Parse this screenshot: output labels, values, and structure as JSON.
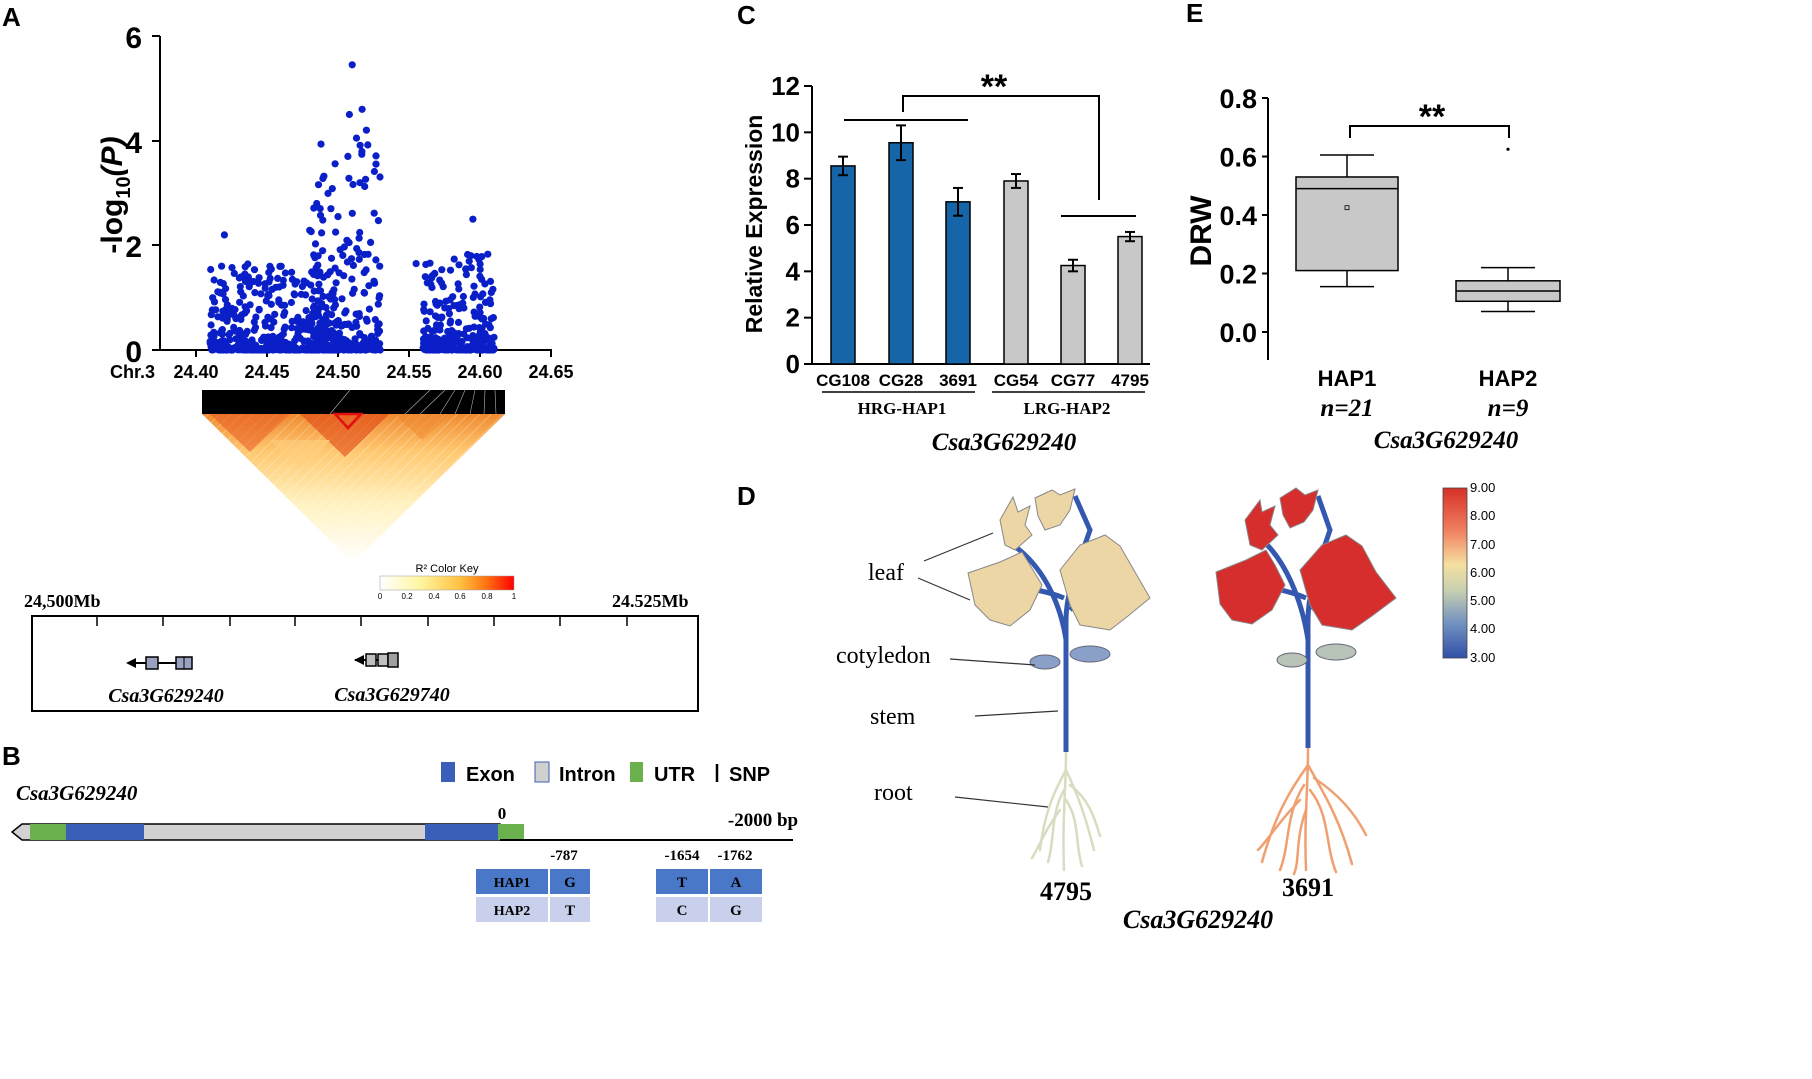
{
  "panels": {
    "A": {
      "letter": "A",
      "ylabel": "-log10(P)",
      "ylabel_main": "-log",
      "ylabel_sub": "10",
      "ylabel_arg": "(P)",
      "yticks": [
        "0",
        "2",
        "4",
        "6"
      ],
      "chr_label": "Chr.3",
      "xticks": [
        "24.40",
        "24.45",
        "24.50",
        "24.55",
        "24.60",
        "24.65"
      ],
      "colorkey_title": "R² Color Key",
      "colorkey_ticks": [
        "0",
        "0.2",
        "0.4",
        "0.6",
        "0.8",
        "1"
      ],
      "region_start": "24,500Mb",
      "region_end": "24.525Mb",
      "genes": [
        "Csa3G629240",
        "Csa3G629740"
      ]
    },
    "B": {
      "letter": "B",
      "gene": "Csa3G629240",
      "legend": [
        "Exon",
        "Intron",
        "UTR",
        "SNP"
      ],
      "zero_label": "0",
      "end_label": "-2000 bp",
      "positions": [
        "-787",
        "-1654",
        "-1762"
      ],
      "hap_rows": [
        {
          "name": "HAP1",
          "alleles": [
            "G",
            "T",
            "A"
          ]
        },
        {
          "name": "HAP2",
          "alleles": [
            "T",
            "C",
            "G"
          ]
        }
      ]
    },
    "C": {
      "letter": "C",
      "gene": "Csa3G629240",
      "group1": "HRG-HAP1",
      "group2": "LRG-HAP2",
      "sig": "**"
    },
    "D": {
      "letter": "D",
      "labels": [
        "leaf",
        "cotyledon",
        "stem",
        "root"
      ],
      "sample_left": "4795",
      "sample_right": "3691",
      "gene": "Csa3G629240",
      "scale_ticks": [
        "9.00",
        "8.00",
        "7.00",
        "6.00",
        "5.00",
        "4.00",
        "3.00"
      ]
    },
    "E": {
      "letter": "E",
      "gene": "Csa3G629240",
      "sig": "**",
      "n1": "n=21",
      "n2": "n=9"
    }
  },
  "chart_data": [
    {
      "type": "scatter",
      "title": "",
      "xlabel": "Chr.3",
      "ylabel": "-log10(P)",
      "xlim": [
        24.4,
        24.65
      ],
      "ylim": [
        0,
        6
      ],
      "description_values": {
        "peak_x": 24.51,
        "peak_y": 5.45,
        "clusters": [
          [
            24.41,
            24.5,
            2.2
          ],
          [
            24.48,
            24.53,
            5.45
          ],
          [
            24.56,
            24.61,
            2.5
          ]
        ]
      },
      "color": "#0a1fc8"
    },
    {
      "type": "bar",
      "title": "",
      "ylabel": "Relative Expression",
      "categories": [
        "CG108",
        "CG28",
        "3691",
        "CG54",
        "CG77",
        "4795"
      ],
      "values": [
        8.55,
        9.55,
        7.0,
        7.9,
        4.25,
        5.5
      ],
      "errors": [
        0.4,
        0.75,
        0.6,
        0.3,
        0.25,
        0.2
      ],
      "colors": [
        "#1565a8",
        "#1565a8",
        "#1565a8",
        "#c8c8c8",
        "#c8c8c8",
        "#c8c8c8"
      ],
      "ylim": [
        0,
        12
      ],
      "yticks": [
        0,
        2,
        4,
        6,
        8,
        10,
        12
      ],
      "annotation": "**"
    },
    {
      "type": "box",
      "title": "",
      "ylabel": "DRW",
      "categories": [
        "HAP1",
        "HAP2"
      ],
      "series": [
        {
          "name": "HAP1",
          "whisker_low": 0.155,
          "q1": 0.21,
          "median": 0.49,
          "q3": 0.53,
          "whisker_high": 0.605,
          "mean": 0.425,
          "outliers": []
        },
        {
          "name": "HAP2",
          "whisker_low": 0.07,
          "q1": 0.105,
          "median": 0.14,
          "q3": 0.175,
          "whisker_high": 0.22,
          "mean": 0.14,
          "outliers": [
            0.625
          ]
        }
      ],
      "ylim": [
        0,
        0.8
      ],
      "yticks": [
        0.0,
        0.2,
        0.4,
        0.6,
        0.8
      ],
      "annotation": "**"
    }
  ]
}
